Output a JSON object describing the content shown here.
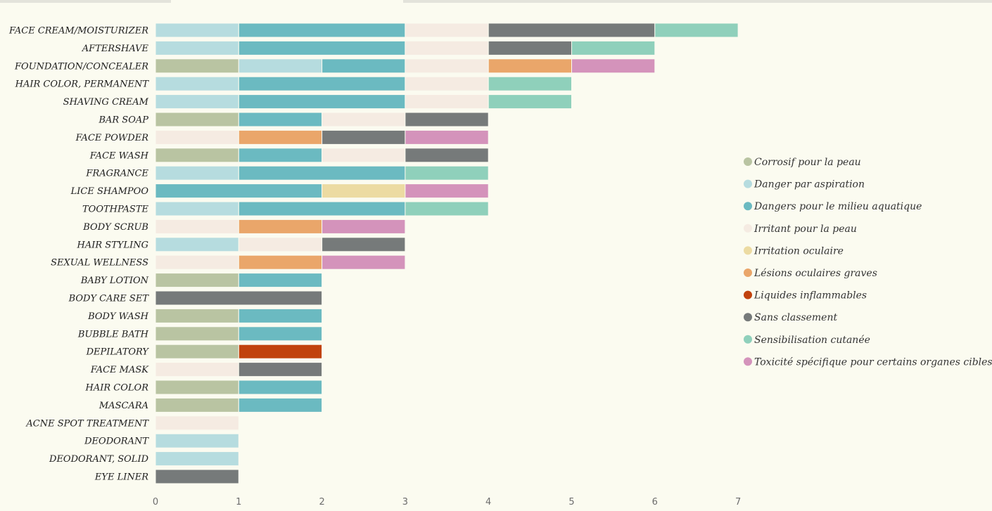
{
  "chart_data": {
    "type": "bar",
    "orientation": "horizontal",
    "stacked": true,
    "title": "",
    "xlabel": "",
    "ylabel": "",
    "xlim": [
      0,
      7
    ],
    "xticks": [
      "0",
      "1",
      "2",
      "3",
      "4",
      "5",
      "6",
      "7"
    ],
    "grid": false,
    "legend_position": "right",
    "categories": [
      "FACE CREAM/MOISTURIZER",
      "AFTERSHAVE",
      "FOUNDATION/CONCEALER",
      "HAIR COLOR, PERMANENT",
      "SHAVING CREAM",
      "BAR SOAP",
      "FACE POWDER",
      "FACE WASH",
      "FRAGRANCE",
      "LICE SHAMPOO",
      "TOOTHPASTE",
      "BODY SCRUB",
      "HAIR STYLING",
      "SEXUAL WELLNESS",
      "BABY LOTION",
      "BODY CARE SET",
      "BODY WASH",
      "BUBBLE BATH",
      "DEPILATORY",
      "FACE MASK",
      "HAIR COLOR",
      "MASCARA",
      "ACNE SPOT TREATMENT",
      "DEODORANT",
      "DEODORANT, SOLID",
      "EYE LINER"
    ],
    "series": [
      {
        "name": "Corrosif pour la peau",
        "color": "#b9c4a2",
        "values": [
          0,
          0,
          1,
          0,
          0,
          1,
          0,
          1,
          0,
          0,
          0,
          0,
          0,
          0,
          1,
          0,
          1,
          1,
          1,
          0,
          1,
          1,
          0,
          0,
          0,
          0
        ]
      },
      {
        "name": "Danger par aspiration",
        "color": "#b6dcdf",
        "values": [
          1,
          1,
          1,
          1,
          1,
          0,
          0,
          0,
          1,
          0,
          1,
          0,
          1,
          0,
          0,
          0,
          0,
          0,
          0,
          0,
          0,
          0,
          0,
          1,
          1,
          0
        ]
      },
      {
        "name": "Dangers pour le milieu aquatique",
        "color": "#6bbac1",
        "values": [
          2,
          2,
          1,
          2,
          2,
          1,
          0,
          1,
          2,
          2,
          2,
          0,
          0,
          0,
          1,
          0,
          1,
          1,
          0,
          0,
          1,
          1,
          0,
          0,
          0,
          0
        ]
      },
      {
        "name": "Irritant pour la peau",
        "color": "#f5ebe2",
        "values": [
          1,
          1,
          1,
          1,
          1,
          1,
          1,
          1,
          0,
          0,
          0,
          1,
          1,
          1,
          0,
          0,
          0,
          0,
          0,
          1,
          0,
          0,
          1,
          0,
          0,
          0
        ]
      },
      {
        "name": "Irritation oculaire",
        "color": "#ecdba2",
        "values": [
          0,
          0,
          0,
          0,
          0,
          0,
          0,
          0,
          0,
          1,
          0,
          0,
          0,
          0,
          0,
          0,
          0,
          0,
          0,
          0,
          0,
          0,
          0,
          0,
          0,
          0
        ]
      },
      {
        "name": "Lésions oculaires graves",
        "color": "#eaa66a",
        "values": [
          0,
          0,
          1,
          0,
          0,
          0,
          1,
          0,
          0,
          0,
          0,
          1,
          0,
          1,
          0,
          0,
          0,
          0,
          0,
          0,
          0,
          0,
          0,
          0,
          0,
          0
        ]
      },
      {
        "name": "Liquides inflammables",
        "color": "#c1420d",
        "values": [
          0,
          0,
          0,
          0,
          0,
          0,
          0,
          0,
          0,
          0,
          0,
          0,
          0,
          0,
          0,
          0,
          0,
          0,
          1,
          0,
          0,
          0,
          0,
          0,
          0,
          0
        ]
      },
      {
        "name": "Sans classement",
        "color": "#767a7a",
        "values": [
          2,
          1,
          0,
          0,
          0,
          1,
          1,
          1,
          0,
          0,
          0,
          0,
          1,
          0,
          0,
          2,
          0,
          0,
          0,
          1,
          0,
          0,
          0,
          0,
          0,
          1
        ]
      },
      {
        "name": "Sensibilisation cutanée",
        "color": "#8fd0bb",
        "values": [
          1,
          1,
          0,
          1,
          1,
          0,
          0,
          0,
          1,
          0,
          1,
          0,
          0,
          0,
          0,
          0,
          0,
          0,
          0,
          0,
          0,
          0,
          0,
          0,
          0,
          0
        ]
      },
      {
        "name": "Toxicité spécifique pour certains organes cibles",
        "color": "#d493bb",
        "values": [
          0,
          0,
          1,
          0,
          0,
          0,
          1,
          0,
          0,
          1,
          0,
          1,
          0,
          1,
          0,
          0,
          0,
          0,
          0,
          0,
          0,
          0,
          0,
          0,
          0,
          0
        ]
      }
    ]
  }
}
